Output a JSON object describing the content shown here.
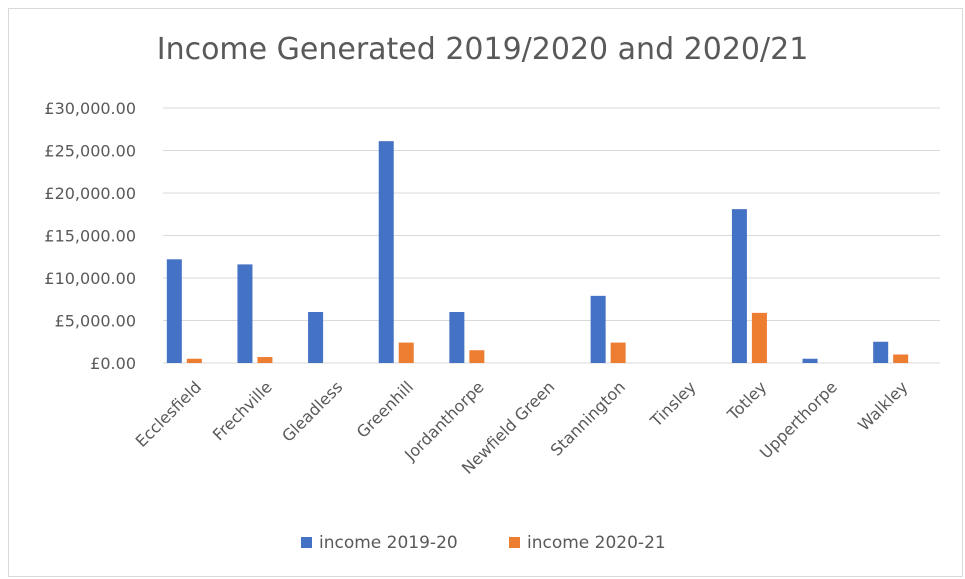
{
  "chart_data": {
    "type": "bar",
    "title": "Income Generated 2019/2020 and 2020/21",
    "categories": [
      "Ecclesfield",
      "Frechville",
      "Gleadless",
      "Greenhill",
      "Jordanthorpe",
      "Newfield Green",
      "Stannington",
      "Tinsley",
      "Totley",
      "Upperthorpe",
      "Walkley"
    ],
    "series": [
      {
        "name": "income 2019-20",
        "color": "#4472c4",
        "values": [
          12200,
          11600,
          6000,
          26100,
          6000,
          0,
          7900,
          0,
          18100,
          500,
          2500
        ]
      },
      {
        "name": "income 2020-21",
        "color": "#ed7d31",
        "values": [
          500,
          700,
          0,
          2400,
          1500,
          0,
          2400,
          0,
          5900,
          0,
          1000
        ]
      }
    ],
    "ylim": [
      0,
      30000
    ],
    "yticks": [
      0,
      5000,
      10000,
      15000,
      20000,
      25000,
      30000
    ],
    "ytick_labels": [
      "£0.00",
      "£5,000.00",
      "£10,000.00",
      "£15,000.00",
      "£20,000.00",
      "£25,000.00",
      "£30,000.00"
    ],
    "grid": true,
    "legend_position": "bottom"
  }
}
